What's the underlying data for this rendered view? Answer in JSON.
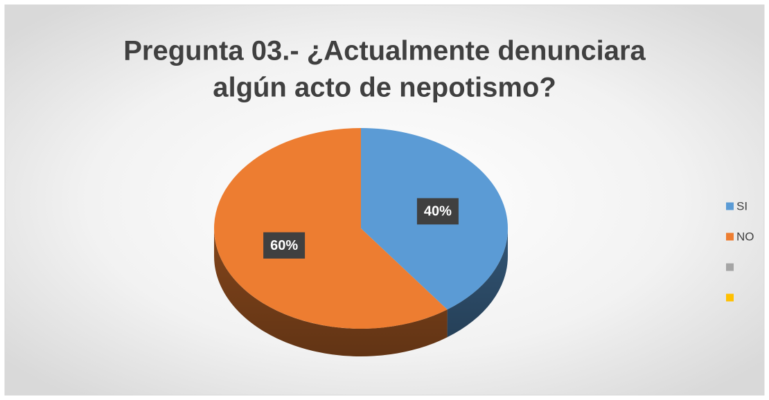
{
  "chart_data": {
    "type": "pie",
    "title": "Pregunta 03.- ¿Actualmente denunciara",
    "title_line2": "algún acto de nepotismo?",
    "categories": [
      "SI",
      "NO",
      null,
      null
    ],
    "values": [
      40,
      60,
      0,
      0
    ],
    "value_labels": [
      "40%",
      "60%",
      null,
      null
    ],
    "colors": [
      "#5b9bd5",
      "#ed7d31",
      "#a5a5a5",
      "#ffc000"
    ],
    "legend": "right"
  }
}
